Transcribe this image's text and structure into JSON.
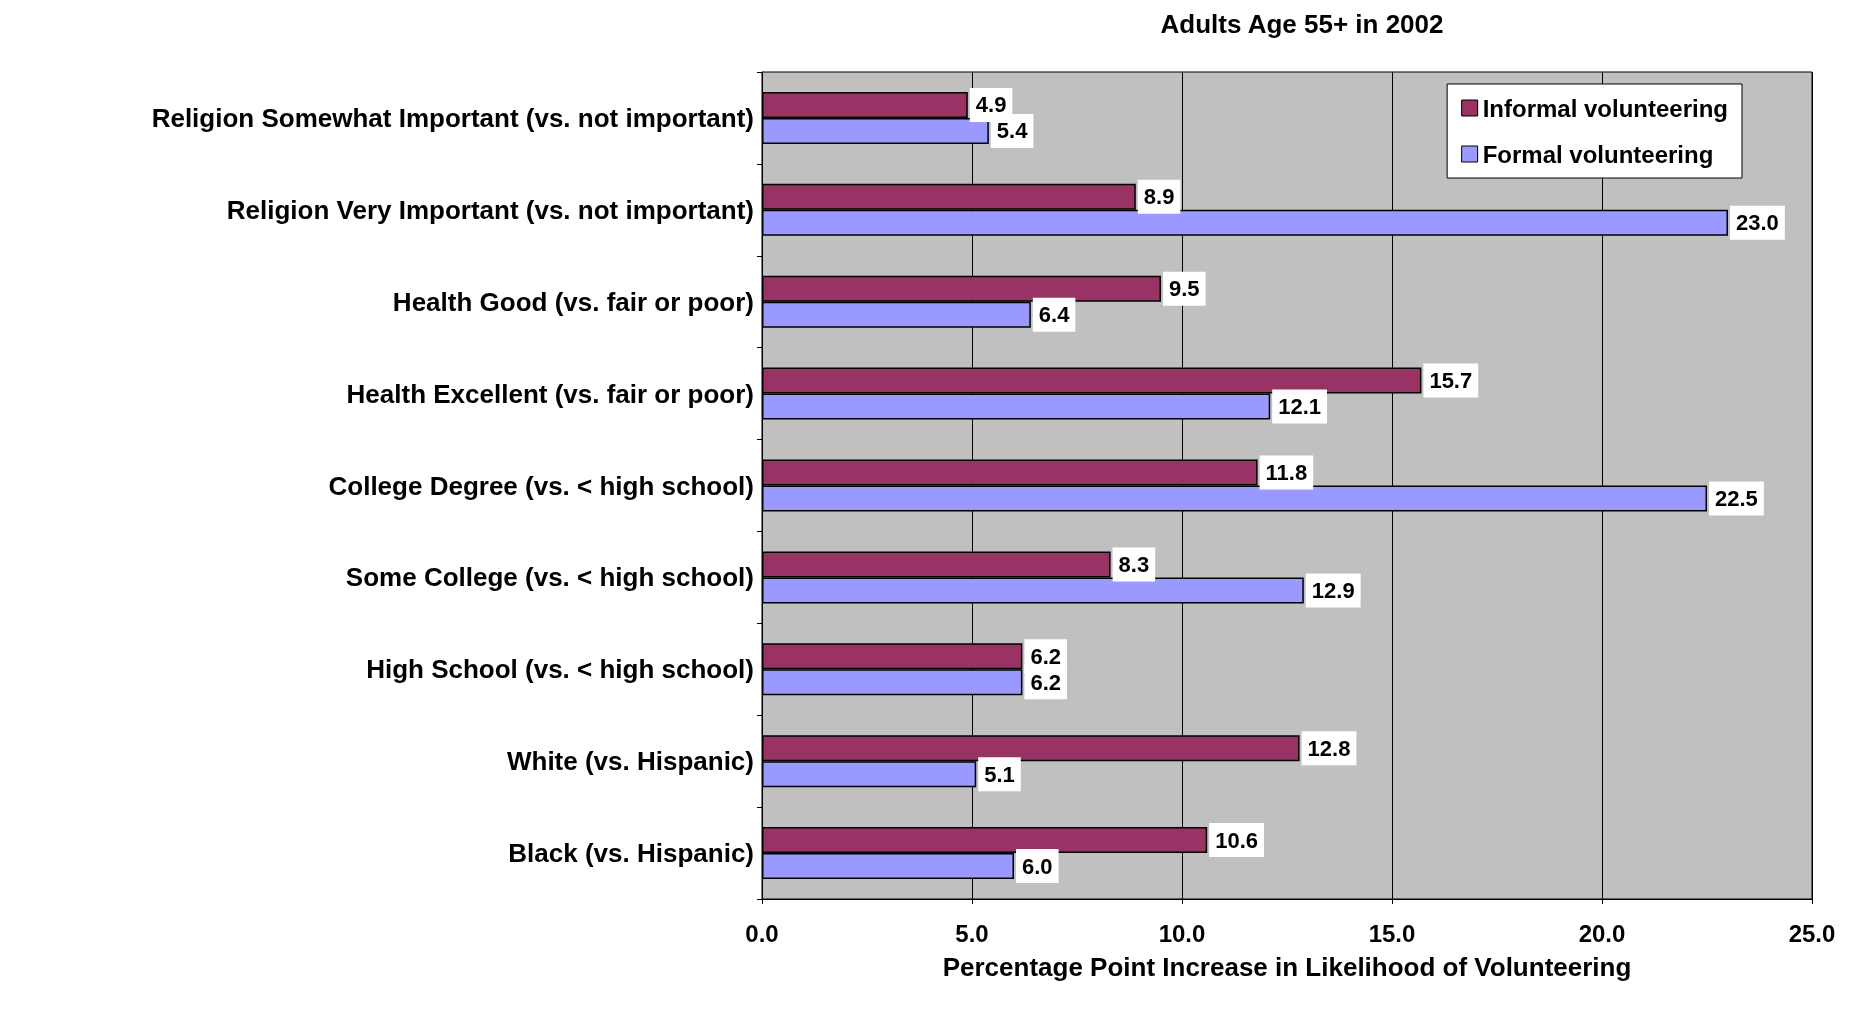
{
  "chart_data": {
    "type": "bar",
    "orientation": "horizontal",
    "title": "Adults Age 55+ in 2002",
    "xlabel": "Percentage Point Increase in Likelihood of Volunteering",
    "categories": [
      "Religion Somewhat Important (vs. not important)",
      "Religion Very Important (vs. not important)",
      "Health Good (vs. fair or poor)",
      "Health Excellent (vs. fair or poor)",
      "College Degree (vs. < high school)",
      "Some College (vs. < high school)",
      "High School (vs. < high school)",
      "White (vs. Hispanic)",
      "Black (vs. Hispanic)"
    ],
    "series": [
      {
        "name": "Informal volunteering",
        "color": "#993366",
        "values": [
          4.9,
          8.9,
          9.5,
          15.7,
          11.8,
          8.3,
          6.2,
          12.8,
          10.6
        ],
        "value_labels": [
          "4.9",
          "8.9",
          "9.5",
          "15.7",
          "11.8",
          "8.3",
          "6.2",
          "12.8",
          "10.6"
        ]
      },
      {
        "name": "Formal volunteering",
        "color": "#9999ff",
        "values": [
          5.4,
          23.0,
          6.4,
          12.1,
          22.5,
          12.9,
          6.2,
          5.1,
          6.0
        ],
        "value_labels": [
          "5.4",
          "23.0",
          "6.4",
          "12.1",
          "22.5",
          "12.9",
          "6.2",
          "5.1",
          "6.0"
        ]
      }
    ],
    "xlim": [
      0,
      25
    ],
    "xticks": [
      {
        "value": 0,
        "label": "0.0"
      },
      {
        "value": 5,
        "label": "5.0"
      },
      {
        "value": 10,
        "label": "10.0"
      },
      {
        "value": 15,
        "label": "15.0"
      },
      {
        "value": 20,
        "label": "20.0"
      },
      {
        "value": 25,
        "label": "25.0"
      }
    ],
    "grid": "x",
    "legend": "top right"
  }
}
